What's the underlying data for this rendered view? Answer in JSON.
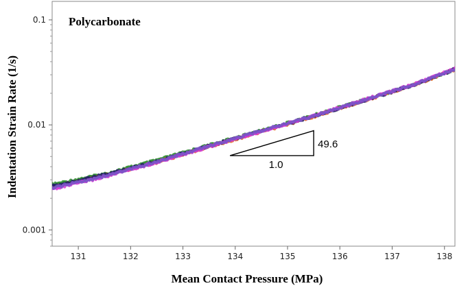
{
  "chart_data": {
    "type": "scatter",
    "title": "Polycarbonate",
    "xlabel": "Mean Contact Pressure (MPa)",
    "ylabel": "Indentation Strain Rate (1/s)",
    "xlim": [
      130.5,
      138.2
    ],
    "ylim": [
      0.0007,
      0.15
    ],
    "yscale": "log",
    "xticks": [
      131,
      132,
      133,
      134,
      135,
      136,
      137,
      138
    ],
    "yticks": [
      {
        "value": 0.001,
        "label": "0.001"
      },
      {
        "value": 0.01,
        "label": "0.01"
      },
      {
        "value": 0.1,
        "label": "0.1"
      }
    ],
    "grid": false,
    "series": [
      {
        "color": "#2e8b2e",
        "x": [
          130.5,
          131.5,
          132.5,
          133.5,
          134.5,
          135.5,
          136.5,
          137.5,
          138.2
        ],
        "y": [
          0.0027,
          0.0034,
          0.0046,
          0.0064,
          0.0088,
          0.0123,
          0.0175,
          0.025,
          0.0338
        ]
      },
      {
        "color": "#e06a20",
        "x": [
          130.5,
          131.5,
          132.5,
          133.5,
          134.5,
          135.5,
          136.5,
          137.5,
          138.2
        ],
        "y": [
          0.00255,
          0.0033,
          0.0044,
          0.0062,
          0.0086,
          0.012,
          0.0172,
          0.0248,
          0.0338
        ]
      },
      {
        "color": "#222266",
        "x": [
          130.5,
          131.5,
          132.5,
          133.5,
          134.5,
          135.5,
          136.5,
          137.5,
          138.2
        ],
        "y": [
          0.0026,
          0.00335,
          0.0045,
          0.0063,
          0.0087,
          0.0121,
          0.0173,
          0.0249,
          0.034
        ]
      },
      {
        "color": "#d63ad6",
        "x": [
          130.5,
          131.5,
          132.5,
          133.5,
          134.5,
          135.5,
          136.5,
          137.5,
          138.2
        ],
        "y": [
          0.00245,
          0.0032,
          0.0044,
          0.0062,
          0.0087,
          0.0122,
          0.0175,
          0.0252,
          0.0342
        ]
      },
      {
        "color": "#7a55c8",
        "x": [
          130.5,
          131.5,
          132.5,
          133.5,
          134.5,
          135.5,
          136.5,
          137.5,
          138.2
        ],
        "y": [
          0.0025,
          0.00325,
          0.00445,
          0.0063,
          0.0088,
          0.0122,
          0.0174,
          0.0251,
          0.034
        ]
      }
    ],
    "annotations": [
      {
        "type": "slope-triangle",
        "x": [
          133.9,
          135.5
        ],
        "y": [
          0.0051,
          0.0088
        ],
        "rise_label": "49.6",
        "run_label": "1.0"
      }
    ]
  }
}
